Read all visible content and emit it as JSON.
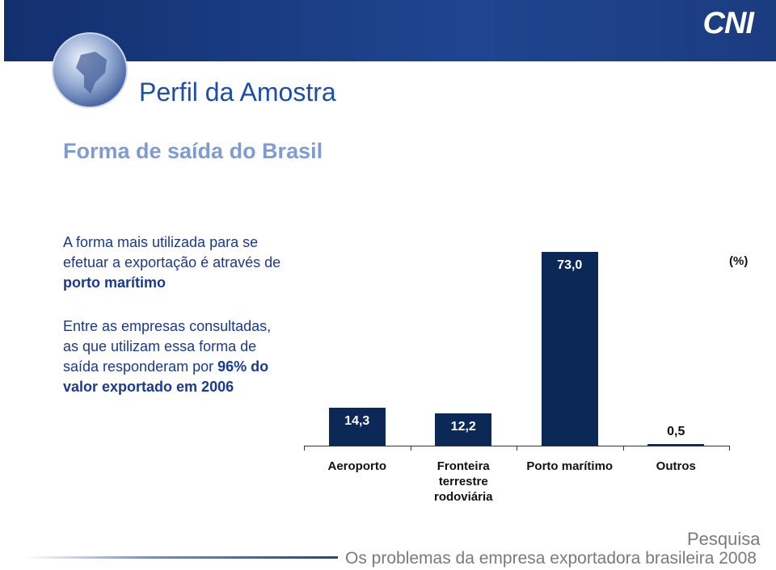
{
  "header": {
    "logo": "CNI",
    "title": "Perfil da Amostra",
    "subtitle": "Forma de saída do Brasil"
  },
  "notes": [
    [
      "A forma mais utilizada para se efetuar a exportação é através de",
      "porto marítimo"
    ],
    [
      "Entre as empresas consultadas, as que utilizam essa forma de saída responderam por",
      "96% do valor exportado em 2006"
    ]
  ],
  "chart_data": {
    "type": "bar",
    "categories": [
      "Aeroporto",
      "Fronteira terrestre rodoviária",
      "Porto marítimo",
      "Outros"
    ],
    "values": [
      14.3,
      12.2,
      73.0,
      0.5
    ],
    "value_labels": [
      "14,3",
      "12,2",
      "73,0",
      "0,5"
    ],
    "color": "#0b2856",
    "y_label": "(%)"
  },
  "footer": {
    "survey": "Pesquisa",
    "publication": "Os problemas da empresa exportadora brasileira 2008"
  }
}
